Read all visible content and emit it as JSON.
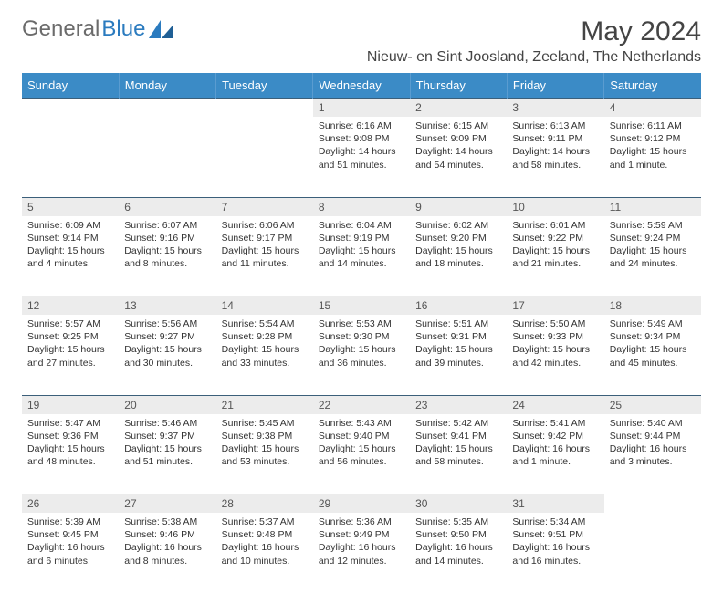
{
  "brand": {
    "part1": "General",
    "part2": "Blue"
  },
  "title": "May 2024",
  "location": "Nieuw- en Sint Joosland, Zeeland, The Netherlands",
  "colors": {
    "header_bg": "#3b8bc6",
    "header_text": "#ffffff",
    "daynum_bg": "#ececec",
    "daynum_text": "#555555",
    "rule": "#3b5f7a",
    "body_text": "#333333",
    "logo_gray": "#6b6b6b",
    "logo_blue": "#2b7bbf",
    "background": "#ffffff"
  },
  "typography": {
    "title_fontsize": 30,
    "location_fontsize": 16,
    "weekday_fontsize": 13,
    "daynum_fontsize": 12,
    "cell_fontsize": 10.5
  },
  "weekdays": [
    "Sunday",
    "Monday",
    "Tuesday",
    "Wednesday",
    "Thursday",
    "Friday",
    "Saturday"
  ],
  "weeks": [
    [
      null,
      null,
      null,
      {
        "n": "1",
        "sr": "6:16 AM",
        "ss": "9:08 PM",
        "dl": "14 hours and 51 minutes."
      },
      {
        "n": "2",
        "sr": "6:15 AM",
        "ss": "9:09 PM",
        "dl": "14 hours and 54 minutes."
      },
      {
        "n": "3",
        "sr": "6:13 AM",
        "ss": "9:11 PM",
        "dl": "14 hours and 58 minutes."
      },
      {
        "n": "4",
        "sr": "6:11 AM",
        "ss": "9:12 PM",
        "dl": "15 hours and 1 minute."
      }
    ],
    [
      {
        "n": "5",
        "sr": "6:09 AM",
        "ss": "9:14 PM",
        "dl": "15 hours and 4 minutes."
      },
      {
        "n": "6",
        "sr": "6:07 AM",
        "ss": "9:16 PM",
        "dl": "15 hours and 8 minutes."
      },
      {
        "n": "7",
        "sr": "6:06 AM",
        "ss": "9:17 PM",
        "dl": "15 hours and 11 minutes."
      },
      {
        "n": "8",
        "sr": "6:04 AM",
        "ss": "9:19 PM",
        "dl": "15 hours and 14 minutes."
      },
      {
        "n": "9",
        "sr": "6:02 AM",
        "ss": "9:20 PM",
        "dl": "15 hours and 18 minutes."
      },
      {
        "n": "10",
        "sr": "6:01 AM",
        "ss": "9:22 PM",
        "dl": "15 hours and 21 minutes."
      },
      {
        "n": "11",
        "sr": "5:59 AM",
        "ss": "9:24 PM",
        "dl": "15 hours and 24 minutes."
      }
    ],
    [
      {
        "n": "12",
        "sr": "5:57 AM",
        "ss": "9:25 PM",
        "dl": "15 hours and 27 minutes."
      },
      {
        "n": "13",
        "sr": "5:56 AM",
        "ss": "9:27 PM",
        "dl": "15 hours and 30 minutes."
      },
      {
        "n": "14",
        "sr": "5:54 AM",
        "ss": "9:28 PM",
        "dl": "15 hours and 33 minutes."
      },
      {
        "n": "15",
        "sr": "5:53 AM",
        "ss": "9:30 PM",
        "dl": "15 hours and 36 minutes."
      },
      {
        "n": "16",
        "sr": "5:51 AM",
        "ss": "9:31 PM",
        "dl": "15 hours and 39 minutes."
      },
      {
        "n": "17",
        "sr": "5:50 AM",
        "ss": "9:33 PM",
        "dl": "15 hours and 42 minutes."
      },
      {
        "n": "18",
        "sr": "5:49 AM",
        "ss": "9:34 PM",
        "dl": "15 hours and 45 minutes."
      }
    ],
    [
      {
        "n": "19",
        "sr": "5:47 AM",
        "ss": "9:36 PM",
        "dl": "15 hours and 48 minutes."
      },
      {
        "n": "20",
        "sr": "5:46 AM",
        "ss": "9:37 PM",
        "dl": "15 hours and 51 minutes."
      },
      {
        "n": "21",
        "sr": "5:45 AM",
        "ss": "9:38 PM",
        "dl": "15 hours and 53 minutes."
      },
      {
        "n": "22",
        "sr": "5:43 AM",
        "ss": "9:40 PM",
        "dl": "15 hours and 56 minutes."
      },
      {
        "n": "23",
        "sr": "5:42 AM",
        "ss": "9:41 PM",
        "dl": "15 hours and 58 minutes."
      },
      {
        "n": "24",
        "sr": "5:41 AM",
        "ss": "9:42 PM",
        "dl": "16 hours and 1 minute."
      },
      {
        "n": "25",
        "sr": "5:40 AM",
        "ss": "9:44 PM",
        "dl": "16 hours and 3 minutes."
      }
    ],
    [
      {
        "n": "26",
        "sr": "5:39 AM",
        "ss": "9:45 PM",
        "dl": "16 hours and 6 minutes."
      },
      {
        "n": "27",
        "sr": "5:38 AM",
        "ss": "9:46 PM",
        "dl": "16 hours and 8 minutes."
      },
      {
        "n": "28",
        "sr": "5:37 AM",
        "ss": "9:48 PM",
        "dl": "16 hours and 10 minutes."
      },
      {
        "n": "29",
        "sr": "5:36 AM",
        "ss": "9:49 PM",
        "dl": "16 hours and 12 minutes."
      },
      {
        "n": "30",
        "sr": "5:35 AM",
        "ss": "9:50 PM",
        "dl": "16 hours and 14 minutes."
      },
      {
        "n": "31",
        "sr": "5:34 AM",
        "ss": "9:51 PM",
        "dl": "16 hours and 16 minutes."
      },
      null
    ]
  ],
  "labels": {
    "sunrise": "Sunrise:",
    "sunset": "Sunset:",
    "daylight": "Daylight:"
  }
}
